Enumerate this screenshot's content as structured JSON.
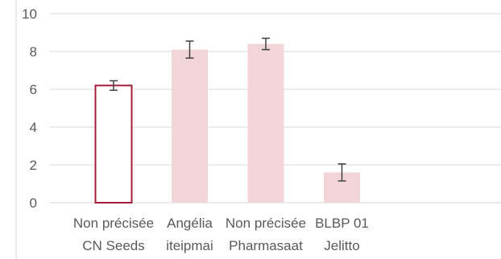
{
  "chart_data": {
    "type": "bar",
    "categories": [
      [
        "Non précisée",
        "CN Seeds"
      ],
      [
        "Angélia",
        "iteipmai"
      ],
      [
        "Non précisée",
        "Pharmasaat"
      ],
      [
        "BLBP 01",
        "Jelitto"
      ]
    ],
    "values": [
      6.2,
      8.1,
      8.4,
      1.6
    ],
    "errors": [
      0.25,
      0.45,
      0.3,
      0.45
    ],
    "highlighted_index": 0,
    "ylim": [
      0,
      10
    ],
    "yticks": [
      "0",
      "2",
      "4",
      "6",
      "8",
      "10"
    ],
    "grid": true,
    "colors": {
      "bar_fill": "#f2d5d7",
      "highlight_fill": "#ffffff",
      "highlight_stroke": "#a3203a",
      "grid": "#d9d9d9",
      "error_bar": "#404040"
    }
  }
}
